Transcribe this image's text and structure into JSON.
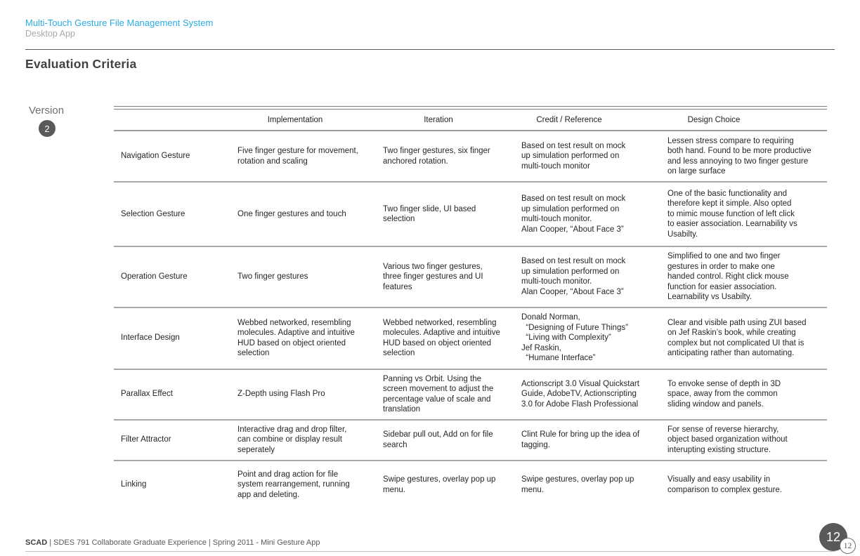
{
  "header": {
    "title": "Multi-Touch Gesture File Management System",
    "subtitle": "Desktop App"
  },
  "page_title": "Evaluation Criteria",
  "version": {
    "label": "Version",
    "number": "2"
  },
  "table": {
    "columns": [
      "Implementation",
      "Iteration",
      "Credit / Reference",
      "Design Choice"
    ],
    "rows": [
      {
        "label": "Navigation Gesture",
        "implementation": "Five finger gesture for movement,\nrotation and scaling",
        "iteration": "Two finger gestures, six finger\nanchored rotation.",
        "credit": "Based on test result on mock\nup simulation performed on\nmulti-touch monitor",
        "design": "Lessen stress compare to requiring\nboth hand. Found to be more productive\nand less annoying to two finger gesture\non large surface"
      },
      {
        "label": "Selection Gesture",
        "implementation": "One finger gestures and touch",
        "iteration": "Two finger slide, UI based\nselection",
        "credit": "Based on test result on mock\nup simulation performed on\nmulti-touch monitor.\nAlan Cooper, “About Face 3”",
        "design": "One of the basic functionality and\ntherefore kept it simple. Also opted\nto mimic mouse function of left click\nto easier association. Learnability vs\nUsabilty."
      },
      {
        "label": "Operation Gesture",
        "implementation": "Two finger gestures",
        "iteration": "Various two finger gestures,\nthree finger gestures and UI\nfeatures",
        "credit": "Based on test result on mock\nup simulation performed on\nmulti-touch monitor.\nAlan Cooper, “About Face 3”",
        "design": "Simplified to one and two finger\ngestures in order to make one\nhanded control. Right click mouse\nfunction for easier association.\nLearnability vs Usabilty."
      },
      {
        "label": "Interface Design",
        "implementation": "Webbed networked, resembling\nmolecules. Adaptive and intuitive\nHUD based on object oriented\nselection",
        "iteration": "Webbed networked, resembling\nmolecules. Adaptive and intuitive\nHUD based on object oriented\nselection",
        "credit": "Donald Norman,\n  “Designing of Future Things”\n  “Living with Complexity”\nJef Raskin,\n  “Humane Interface”",
        "design": "Clear and visible path using ZUI based\non Jef Raskin’s book, while creating\ncomplex but not complicated UI that is\nanticipating rather than automating."
      },
      {
        "label": "Parallax Effect",
        "implementation": "Z-Depth using Flash Pro",
        "iteration": "Panning vs Orbit. Using the\nscreen movement to adjust the\npercentage value of scale and\ntranslation",
        "credit": "Actionscript 3.0 Visual Quickstart\nGuide, AdobeTV, Actionscripting\n3.0 for Adobe Flash Professional",
        "design": "To envoke sense of depth in 3D\nspace, away from the common\nsliding window and panels."
      },
      {
        "label": "Filter Attractor",
        "implementation": "Interactive drag and drop filter,\ncan combine or display result\nseperately",
        "iteration": "Sidebar pull out, Add on for file\nsearch",
        "credit": "Clint Rule for bring up the idea of\ntagging.",
        "design": "For sense of reverse hierarchy,\nobject based organization without\ninterupting existing structure."
      },
      {
        "label": "Linking",
        "implementation": "Point and drag action for file\nsystem rearrangement, running\napp and deleting.",
        "iteration": "Swipe gestures, overlay pop up\nmenu.",
        "credit": "Swipe gestures, overlay pop up\nmenu.",
        "design": "Visually and easy usability in\ncomparison to complex gesture."
      }
    ]
  },
  "footer": {
    "brand": "SCAD",
    "rest": "| SDES 791 Collaborate Graduate Experience | Spring 2011 - Mini Gesture App",
    "page_large": "12",
    "page_small": "12"
  }
}
